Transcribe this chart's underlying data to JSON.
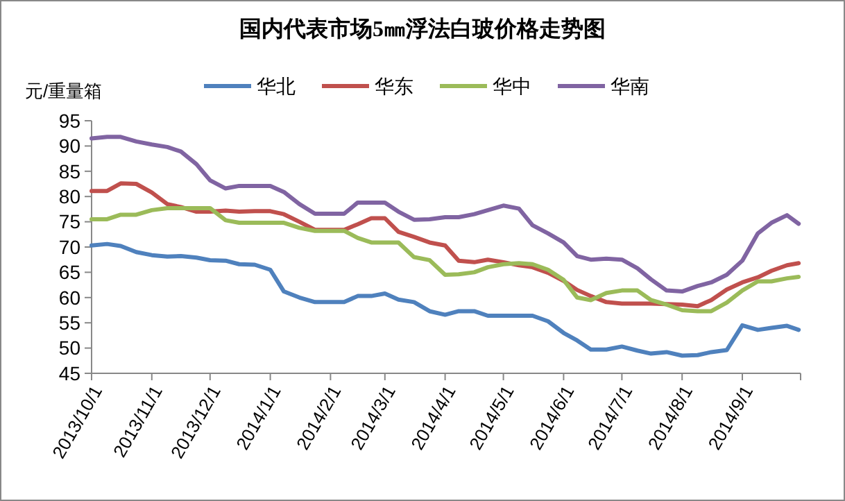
{
  "chart_data": {
    "type": "line",
    "title": "国内代表市场5㎜浮法白玻价格走势图",
    "ylabel": "元/重量箱",
    "x": [
      "2013-10-01",
      "2013-10-09",
      "2013-10-16",
      "2013-10-24",
      "2013-11-01",
      "2013-11-09",
      "2013-11-16",
      "2013-11-24",
      "2013-12-01",
      "2013-12-09",
      "2013-12-16",
      "2013-12-24",
      "2014-01-01",
      "2014-01-08",
      "2014-01-16",
      "2014-01-24",
      "2014-02-01",
      "2014-02-08",
      "2014-02-15",
      "2014-02-22",
      "2014-03-01",
      "2014-03-08",
      "2014-03-16",
      "2014-03-24",
      "2014-04-01",
      "2014-04-08",
      "2014-04-16",
      "2014-04-23",
      "2014-05-01",
      "2014-05-09",
      "2014-05-16",
      "2014-05-24",
      "2014-06-01",
      "2014-06-08",
      "2014-06-15",
      "2014-06-23",
      "2014-07-01",
      "2014-07-09",
      "2014-07-16",
      "2014-07-24",
      "2014-08-01",
      "2014-08-09",
      "2014-08-16",
      "2014-08-24",
      "2014-09-01",
      "2014-09-09",
      "2014-09-16",
      "2014-09-24",
      "2014-09-30"
    ],
    "series": [
      {
        "name": "华北",
        "color": "#4f81bd",
        "values": [
          70.3,
          70.6,
          70.2,
          69.0,
          68.4,
          68.1,
          68.2,
          67.9,
          67.4,
          67.3,
          66.6,
          66.5,
          65.5,
          61.2,
          60.0,
          59.1,
          59.1,
          59.1,
          60.3,
          60.3,
          60.8,
          59.6,
          59.1,
          57.3,
          56.6,
          57.3,
          57.3,
          56.4,
          56.4,
          56.4,
          56.4,
          55.3,
          53.0,
          51.5,
          49.7,
          49.7,
          50.3,
          49.5,
          48.9,
          49.2,
          48.5,
          48.6,
          49.2,
          49.6,
          54.5,
          53.6,
          54.0,
          54.4,
          53.6
        ]
      },
      {
        "name": "华东",
        "color": "#c0504d",
        "values": [
          81.1,
          81.1,
          82.6,
          82.5,
          80.8,
          78.5,
          77.9,
          77.0,
          77.0,
          77.2,
          77.0,
          77.1,
          77.1,
          76.5,
          75.0,
          73.4,
          73.4,
          73.4,
          74.5,
          75.7,
          75.7,
          73.0,
          72.0,
          70.9,
          70.3,
          67.3,
          67.0,
          67.5,
          67.0,
          66.4,
          66.0,
          64.9,
          63.3,
          61.5,
          60.3,
          59.1,
          58.8,
          58.8,
          58.8,
          58.7,
          58.6,
          58.3,
          59.5,
          61.6,
          63.0,
          64.0,
          65.3,
          66.4,
          66.8
        ]
      },
      {
        "name": "华中",
        "color": "#9bbb59",
        "values": [
          75.5,
          75.5,
          76.4,
          76.4,
          77.3,
          77.7,
          77.7,
          77.7,
          77.7,
          75.3,
          74.8,
          74.8,
          74.8,
          74.8,
          73.8,
          73.2,
          73.2,
          73.2,
          71.8,
          70.9,
          70.9,
          70.9,
          68.0,
          67.4,
          64.5,
          64.6,
          65.0,
          66.0,
          66.6,
          66.8,
          66.6,
          65.5,
          63.5,
          60.0,
          59.5,
          60.9,
          61.4,
          61.4,
          59.5,
          58.6,
          57.5,
          57.3,
          57.3,
          59.0,
          61.4,
          63.2,
          63.2,
          63.8,
          64.1
        ]
      },
      {
        "name": "华南",
        "color": "#8064a2",
        "values": [
          91.5,
          91.8,
          91.8,
          90.9,
          90.3,
          89.8,
          88.9,
          86.4,
          83.2,
          81.6,
          82.1,
          82.1,
          82.1,
          80.9,
          78.5,
          76.6,
          76.6,
          76.6,
          78.8,
          78.8,
          78.8,
          77.0,
          75.4,
          75.5,
          75.9,
          75.9,
          76.5,
          77.3,
          78.2,
          77.6,
          74.3,
          72.7,
          70.9,
          68.2,
          67.5,
          67.7,
          67.5,
          65.8,
          63.6,
          61.4,
          61.2,
          62.3,
          63.0,
          64.5,
          67.3,
          72.7,
          74.8,
          76.3,
          74.6
        ]
      }
    ],
    "xlim": [
      "2013-10-01",
      "2014-10-01"
    ],
    "xticks": [
      {
        "value": "2013-10-01",
        "label": "2013/10/1"
      },
      {
        "value": "2013-11-01",
        "label": "2013/11/1"
      },
      {
        "value": "2013-12-01",
        "label": "2013/12/1"
      },
      {
        "value": "2014-01-01",
        "label": "2014/1/1"
      },
      {
        "value": "2014-02-01",
        "label": "2014/2/1"
      },
      {
        "value": "2014-03-01",
        "label": "2014/3/1"
      },
      {
        "value": "2014-04-01",
        "label": "2014/4/1"
      },
      {
        "value": "2014-05-01",
        "label": "2014/5/1"
      },
      {
        "value": "2014-06-01",
        "label": "2014/6/1"
      },
      {
        "value": "2014-07-01",
        "label": "2014/7/1"
      },
      {
        "value": "2014-08-01",
        "label": "2014/8/1"
      },
      {
        "value": "2014-09-01",
        "label": "2014/9/1"
      },
      {
        "value": "2014-10-01",
        "label": null
      }
    ],
    "ylim": [
      45,
      95
    ],
    "yticks": [
      45,
      50,
      55,
      60,
      65,
      70,
      75,
      80,
      85,
      90,
      95
    ],
    "legend": "top",
    "grid": false,
    "marker": "none",
    "line_style": "solid"
  }
}
